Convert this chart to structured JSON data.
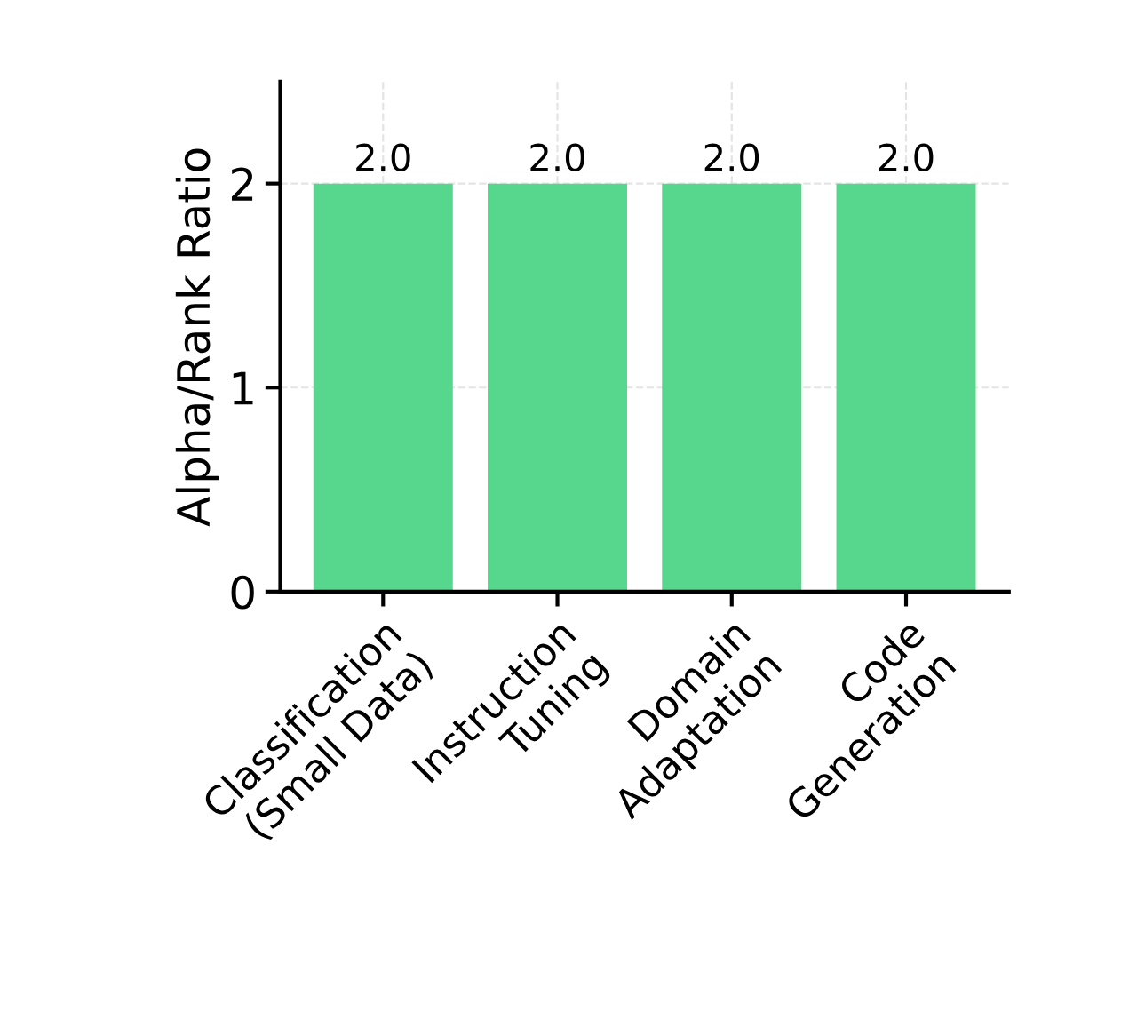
{
  "chart_data": {
    "type": "bar",
    "ylabel": "Alpha/Rank Ratio",
    "categories": [
      "Classification\n(Small Data)",
      "Instruction\nTuning",
      "Domain\nAdaptation",
      "Code\nGeneration"
    ],
    "values": [
      2.0,
      2.0,
      2.0,
      2.0
    ],
    "color": "#57d68d",
    "value_labels": [
      "2.0",
      "2.0",
      "2.0",
      "2.0"
    ],
    "ylim": [
      0,
      2.5
    ],
    "yticks": [
      0,
      1,
      2
    ],
    "grid": true
  }
}
